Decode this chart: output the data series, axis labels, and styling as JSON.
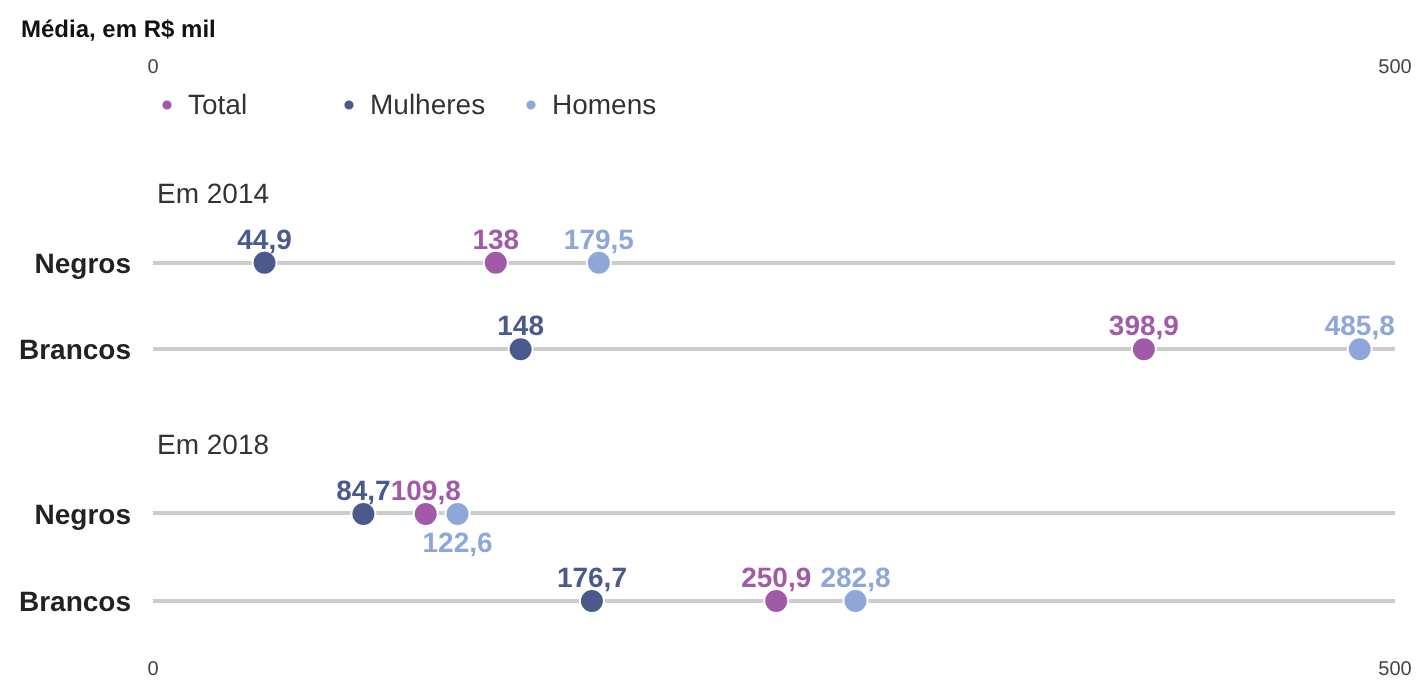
{
  "chart_data": [
    {
      "type": "scatter",
      "orientation": "horizontal",
      "title": "Média, em R$ mil",
      "subtitle": "Em 2014",
      "categories": [
        "Negros",
        "Brancos"
      ],
      "xlim": [
        0,
        500
      ],
      "xticks": [
        0,
        500
      ],
      "grid": "y",
      "legend": "top left",
      "marker": "circle",
      "series": [
        {
          "name": "Total",
          "color": "#a05aa8",
          "values": [
            138,
            398.9
          ],
          "value_labels": [
            "138",
            "398,9"
          ]
        },
        {
          "name": "Mulheres",
          "color": "#4b5a8c",
          "values": [
            44.9,
            148
          ],
          "value_labels": [
            "44,9",
            "148"
          ]
        },
        {
          "name": "Homens",
          "color": "#8ea6d8",
          "values": [
            179.5,
            485.8
          ],
          "value_labels": [
            "179,5",
            "485,8"
          ]
        }
      ]
    },
    {
      "type": "scatter",
      "orientation": "horizontal",
      "subtitle": "Em 2018",
      "categories": [
        "Negros",
        "Brancos"
      ],
      "xlim": [
        0,
        500
      ],
      "xticks": [
        0,
        500
      ],
      "grid": "y",
      "marker": "circle",
      "series": [
        {
          "color": "#a05aa8",
          "values": [
            109.8,
            250.9
          ],
          "value_labels": [
            "109,8",
            "250,9"
          ]
        },
        {
          "color": "#4b5a8c",
          "values": [
            84.7,
            176.7
          ],
          "value_labels": [
            "84,7",
            "176,7"
          ]
        },
        {
          "color": "#8ea6d8",
          "values": [
            122.6,
            282.8
          ],
          "value_labels": [
            "122,6",
            "282,8"
          ]
        }
      ]
    }
  ]
}
